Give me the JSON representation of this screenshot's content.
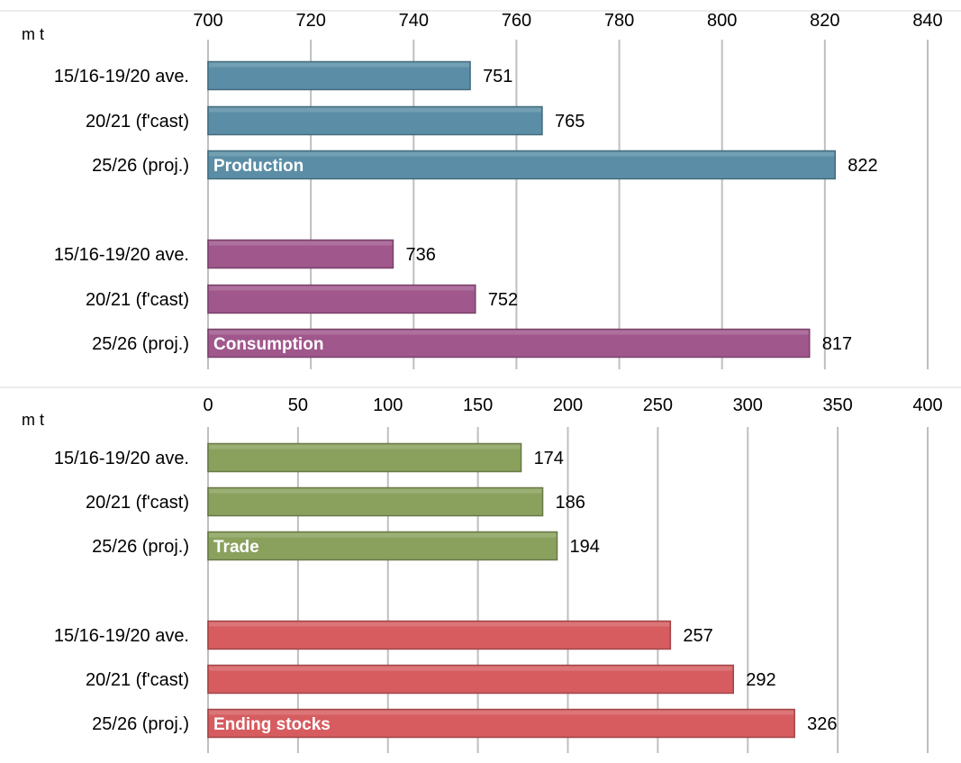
{
  "chart_data": [
    {
      "type": "bar",
      "orientation": "horizontal",
      "unit": "m t",
      "xlim": [
        700,
        840
      ],
      "ticks": [
        "700",
        "720",
        "740",
        "760",
        "780",
        "800",
        "820",
        "840"
      ],
      "grid": true,
      "groups": [
        {
          "label": "Production",
          "color": "#5b8ea6",
          "categories": [
            "15/16-19/20 ave.",
            "20/21 (f'cast)",
            "25/26 (proj.)"
          ],
          "values": [
            751,
            765,
            822
          ]
        },
        {
          "label": "Consumption",
          "color": "#a0578c",
          "categories": [
            "15/16-19/20 ave.",
            "20/21 (f'cast)",
            "25/26 (proj.)"
          ],
          "values": [
            736,
            752,
            817
          ]
        }
      ]
    },
    {
      "type": "bar",
      "orientation": "horizontal",
      "unit": "m t",
      "xlim": [
        0,
        400
      ],
      "ticks": [
        "0",
        "50",
        "100",
        "150",
        "200",
        "250",
        "300",
        "350",
        "400"
      ],
      "grid": true,
      "groups": [
        {
          "label": "Trade",
          "color": "#8aa15e",
          "categories": [
            "15/16-19/20 ave.",
            "20/21 (f'cast)",
            "25/26 (proj.)"
          ],
          "values": [
            174,
            186,
            194
          ]
        },
        {
          "label": "Ending stocks",
          "color": "#d65c5f",
          "categories": [
            "15/16-19/20 ave.",
            "20/21 (f'cast)",
            "25/26 (proj.)"
          ],
          "values": [
            257,
            292,
            326
          ]
        }
      ]
    }
  ]
}
